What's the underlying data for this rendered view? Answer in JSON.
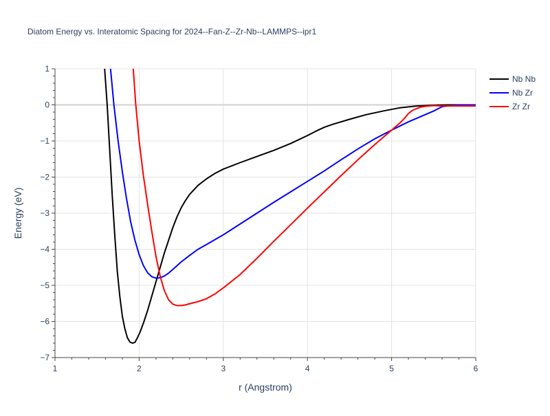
{
  "chart_data": {
    "type": "line",
    "title": "Diatom Energy vs. Interatomic Spacing for 2024--Fan-Z--Zr-Nb--LAMMPS--ipr1",
    "xlabel": "r (Angstrom)",
    "ylabel": "Energy (eV)",
    "xlim": [
      1,
      6
    ],
    "ylim": [
      -7,
      1
    ],
    "xticks": [
      1,
      2,
      3,
      4,
      5,
      6
    ],
    "xtick_labels": [
      "1",
      "2",
      "3",
      "4",
      "5",
      "6"
    ],
    "yticks": [
      1,
      0,
      -1,
      -2,
      -3,
      -4,
      -5,
      -6,
      -7
    ],
    "ytick_labels": [
      "1",
      "0",
      "−1",
      "−2",
      "−3",
      "−4",
      "−5",
      "−6",
      "−7"
    ],
    "grid": true,
    "legend_position": "top-right",
    "series": [
      {
        "name": "Nb Nb",
        "color": "#000000",
        "x": [
          1.59,
          1.62,
          1.65,
          1.68,
          1.71,
          1.74,
          1.77,
          1.8,
          1.83,
          1.86,
          1.89,
          1.92,
          1.95,
          1.98,
          2.01,
          2.05,
          2.1,
          2.15,
          2.2,
          2.25,
          2.3,
          2.35,
          2.4,
          2.45,
          2.5,
          2.55,
          2.6,
          2.7,
          2.8,
          2.9,
          3.0,
          3.2,
          3.4,
          3.6,
          3.8,
          4.0,
          4.1,
          4.2,
          4.3,
          4.5,
          4.7,
          4.9,
          5.1,
          5.3,
          5.5,
          5.7,
          5.85,
          6.0
        ],
        "y": [
          1.0,
          0.0,
          -1.25,
          -2.5,
          -3.6,
          -4.6,
          -5.3,
          -5.85,
          -6.2,
          -6.45,
          -6.57,
          -6.6,
          -6.58,
          -6.45,
          -6.3,
          -6.05,
          -5.7,
          -5.3,
          -4.9,
          -4.5,
          -4.1,
          -3.75,
          -3.4,
          -3.1,
          -2.85,
          -2.65,
          -2.48,
          -2.23,
          -2.05,
          -1.9,
          -1.78,
          -1.6,
          -1.43,
          -1.26,
          -1.07,
          -0.85,
          -0.73,
          -0.62,
          -0.54,
          -0.4,
          -0.27,
          -0.17,
          -0.08,
          -0.03,
          -0.01,
          0.0,
          0.0,
          0.0
        ]
      },
      {
        "name": "Nb Zr",
        "color": "#0000ff",
        "x": [
          1.66,
          1.7,
          1.75,
          1.8,
          1.85,
          1.9,
          1.95,
          2.0,
          2.05,
          2.1,
          2.15,
          2.2,
          2.25,
          2.3,
          2.35,
          2.4,
          2.5,
          2.6,
          2.7,
          2.8,
          3.0,
          3.2,
          3.4,
          3.6,
          3.8,
          4.0,
          4.2,
          4.4,
          4.6,
          4.8,
          5.0,
          5.2,
          5.4,
          5.5,
          5.6,
          5.7,
          5.8,
          6.0
        ],
        "y": [
          1.0,
          0.0,
          -1.0,
          -1.85,
          -2.6,
          -3.25,
          -3.75,
          -4.15,
          -4.45,
          -4.65,
          -4.76,
          -4.8,
          -4.79,
          -4.74,
          -4.66,
          -4.56,
          -4.35,
          -4.17,
          -4.0,
          -3.87,
          -3.6,
          -3.3,
          -3.0,
          -2.7,
          -2.41,
          -2.12,
          -1.83,
          -1.52,
          -1.22,
          -0.94,
          -0.7,
          -0.47,
          -0.27,
          -0.17,
          -0.05,
          -0.02,
          0.0,
          0.0
        ]
      },
      {
        "name": "Zr Zr",
        "color": "#ff0000",
        "x": [
          1.93,
          1.96,
          2.0,
          2.05,
          2.1,
          2.15,
          2.2,
          2.25,
          2.3,
          2.35,
          2.4,
          2.45,
          2.5,
          2.55,
          2.6,
          2.7,
          2.8,
          2.9,
          3.0,
          3.2,
          3.4,
          3.6,
          3.8,
          4.0,
          4.2,
          4.4,
          4.6,
          4.8,
          5.0,
          5.05,
          5.1,
          5.15,
          5.2,
          5.25,
          5.3,
          5.35,
          5.4,
          5.5,
          5.6,
          5.8,
          6.0
        ],
        "y": [
          1.0,
          0.0,
          -1.0,
          -1.95,
          -2.75,
          -3.5,
          -4.2,
          -4.75,
          -5.15,
          -5.4,
          -5.52,
          -5.56,
          -5.56,
          -5.54,
          -5.51,
          -5.45,
          -5.37,
          -5.24,
          -5.07,
          -4.7,
          -4.25,
          -3.78,
          -3.32,
          -2.86,
          -2.41,
          -1.96,
          -1.52,
          -1.1,
          -0.7,
          -0.6,
          -0.5,
          -0.38,
          -0.24,
          -0.15,
          -0.1,
          -0.06,
          -0.04,
          -0.02,
          -0.03,
          -0.03,
          -0.03
        ]
      }
    ]
  }
}
